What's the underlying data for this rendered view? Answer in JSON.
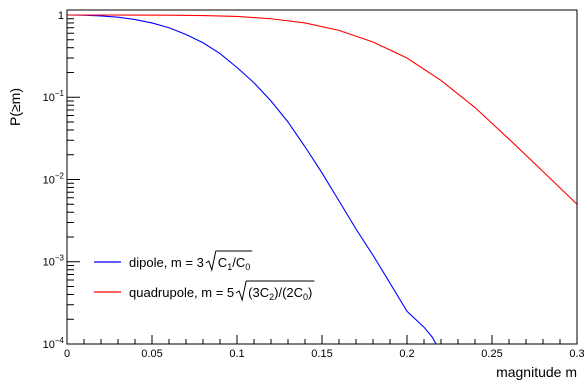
{
  "chart_data": {
    "type": "line",
    "xlabel": "magnitude m",
    "ylabel": "P(≥m)",
    "xlim": [
      0,
      0.3
    ],
    "ylim": [
      0.0001,
      1.15
    ],
    "yscale": "log",
    "grid": false,
    "legend_position": "bottom-left",
    "x_ticks": [
      {
        "value": 0,
        "label": "0"
      },
      {
        "value": 0.05,
        "label": "0.05"
      },
      {
        "value": 0.1,
        "label": "0.1"
      },
      {
        "value": 0.15,
        "label": "0.15"
      },
      {
        "value": 0.2,
        "label": "0.2"
      },
      {
        "value": 0.25,
        "label": "0.25"
      },
      {
        "value": 0.3,
        "label": "0.3"
      }
    ],
    "y_ticks": [
      {
        "value": 1,
        "base": "1",
        "exp": ""
      },
      {
        "value": 0.1,
        "base": "10",
        "exp": "−1"
      },
      {
        "value": 0.01,
        "base": "10",
        "exp": "−2"
      },
      {
        "value": 0.001,
        "base": "10",
        "exp": "−3"
      },
      {
        "value": 0.0001,
        "base": "10",
        "exp": "−4"
      }
    ],
    "series": [
      {
        "name": "dipole, m = 3 √(C1/C0)",
        "legend_prefix": "dipole, m = 3",
        "legend_radicand": [
          {
            "text": "C"
          },
          {
            "text": "1",
            "sub": true
          },
          {
            "text": "/C"
          },
          {
            "text": "0",
            "sub": true
          }
        ],
        "color": "#0000ff",
        "x": [
          0,
          0.01,
          0.02,
          0.03,
          0.04,
          0.05,
          0.06,
          0.07,
          0.08,
          0.09,
          0.1,
          0.11,
          0.12,
          0.13,
          0.14,
          0.15,
          0.16,
          0.17,
          0.18,
          0.19,
          0.2,
          0.21,
          0.215,
          0.217
        ],
        "y": [
          1,
          0.995,
          0.975,
          0.94,
          0.88,
          0.8,
          0.7,
          0.58,
          0.46,
          0.34,
          0.23,
          0.15,
          0.09,
          0.05,
          0.025,
          0.012,
          0.0055,
          0.0025,
          0.0012,
          0.00055,
          0.00025,
          0.00016,
          0.00012,
          0.0001
        ]
      },
      {
        "name": "quadrupole, m = 5 √((3C2)/(2C0))",
        "legend_prefix": "quadrupole, m = 5",
        "legend_radicand": [
          {
            "text": "(3C"
          },
          {
            "text": "2",
            "sub": true
          },
          {
            "text": ")/(2C"
          },
          {
            "text": "0",
            "sub": true
          },
          {
            "text": ")"
          }
        ],
        "color": "#ff0000",
        "x": [
          0,
          0.02,
          0.04,
          0.06,
          0.08,
          0.1,
          0.12,
          0.14,
          0.16,
          0.18,
          0.2,
          0.22,
          0.24,
          0.26,
          0.28,
          0.3
        ],
        "y": [
          1,
          1,
          0.999,
          0.995,
          0.985,
          0.96,
          0.9,
          0.8,
          0.65,
          0.47,
          0.3,
          0.16,
          0.075,
          0.031,
          0.0125,
          0.005
        ]
      }
    ]
  }
}
